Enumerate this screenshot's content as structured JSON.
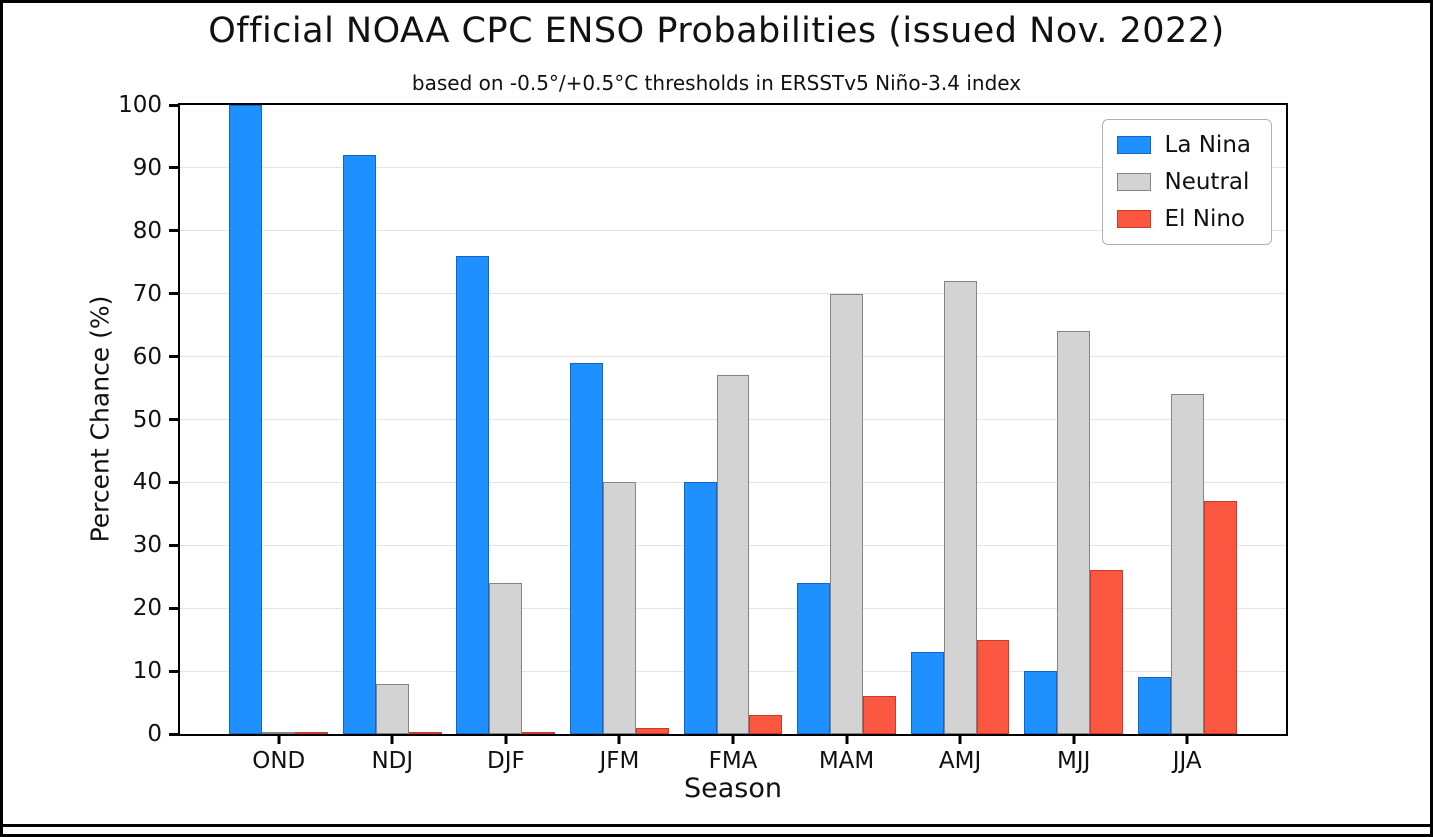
{
  "chart_data": {
    "type": "bar",
    "title": "Official NOAA CPC ENSO Probabilities (issued Nov. 2022)",
    "subtitle": "based on -0.5°/+0.5°C thresholds in ERSSTv5 Niño-3.4 index",
    "xlabel": "Season",
    "ylabel": "Percent Chance (%)",
    "categories": [
      "OND",
      "NDJ",
      "DJF",
      "JFM",
      "FMA",
      "MAM",
      "AMJ",
      "MJJ",
      "JJA"
    ],
    "series": [
      {
        "name": "La Nina",
        "color": "#1e90ff",
        "edge": "#1266c8",
        "values": [
          100,
          92,
          76,
          59,
          40,
          24,
          13,
          10,
          9
        ]
      },
      {
        "name": "Neutral",
        "color": "#d3d3d3",
        "edge": "#848484",
        "values": [
          0,
          8,
          24,
          40,
          57,
          70,
          72,
          64,
          54
        ]
      },
      {
        "name": "El Nino",
        "color": "#fa5640",
        "edge": "#c83a2a",
        "values": [
          0,
          0,
          0,
          1,
          3,
          6,
          15,
          26,
          37
        ]
      }
    ],
    "ylim": [
      0,
      100
    ],
    "yticks": [
      0,
      10,
      20,
      30,
      40,
      50,
      60,
      70,
      80,
      90,
      100
    ],
    "grid": true,
    "legend_position": "top-right"
  }
}
